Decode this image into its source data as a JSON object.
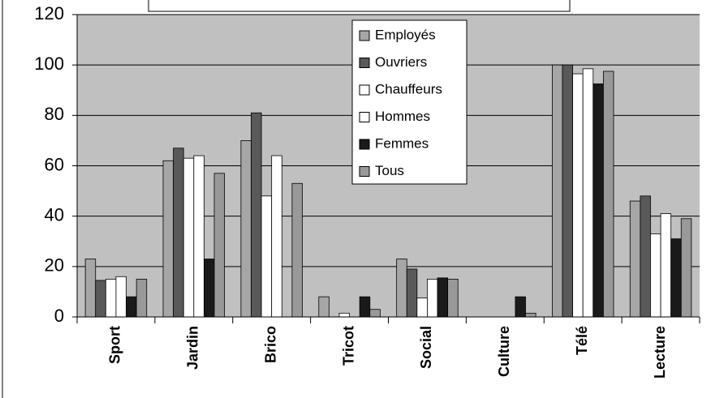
{
  "chart_data": {
    "type": "bar",
    "categories": [
      "Sport",
      "Jardin",
      "Brico",
      "Tricot",
      "Social",
      "Culture",
      "Télé",
      "Lecture"
    ],
    "series": [
      {
        "name": "Employés",
        "color": "#a6a6a6",
        "values": [
          23,
          62,
          70,
          8,
          23,
          0,
          100,
          46
        ]
      },
      {
        "name": "Ouvriers",
        "color": "#595959",
        "values": [
          14.5,
          67,
          81,
          0,
          19,
          0,
          100,
          48
        ]
      },
      {
        "name": "Chauffeurs",
        "color": "#ffffff",
        "values": [
          15,
          63,
          48,
          1.5,
          7.5,
          0,
          96.5,
          33
        ]
      },
      {
        "name": "Hommes",
        "color": "#ffffff",
        "values": [
          16,
          64,
          64,
          0,
          15,
          0,
          98.5,
          41
        ]
      },
      {
        "name": "Femmes",
        "color": "#1a1a1a",
        "values": [
          8,
          23,
          0,
          8,
          15.5,
          8,
          92.5,
          31
        ]
      },
      {
        "name": "Tous",
        "color": "#999999",
        "values": [
          15,
          57,
          53,
          3,
          15,
          1.5,
          97.5,
          39
        ]
      }
    ],
    "ylim": [
      0,
      120
    ],
    "yticks": [
      0,
      20,
      40,
      60,
      80,
      100,
      120
    ],
    "grid": true,
    "plot_background": "#c0c0c0"
  }
}
